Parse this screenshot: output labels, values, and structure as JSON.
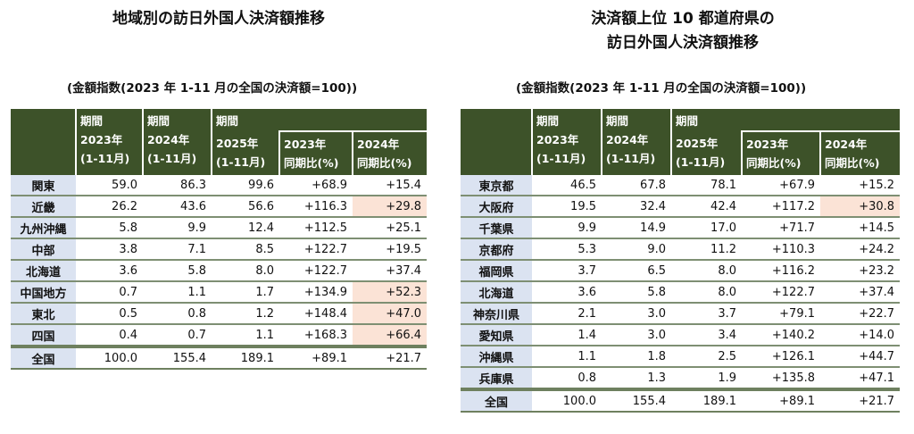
{
  "left": {
    "title": "地域別の訪日外国人決済額推移",
    "subtitle": "(金額指数(2023 年 1-11 月の全国の決済額=100))",
    "headers": {
      "period": "期間",
      "c1": "2023年\n(1-11月)",
      "c2": "2024年\n(1-11月)",
      "c3": "2025年\n(1-11月)",
      "c4": "2023年\n同期比(%)",
      "c5": "2024年\n同期比(%)"
    },
    "rows": [
      [
        "関東",
        "59.0",
        "86.3",
        "99.6",
        "+68.9",
        "+15.4"
      ],
      [
        "近畿",
        "26.2",
        "43.6",
        "56.6",
        "+116.3",
        "+29.8"
      ],
      [
        "九州沖縄",
        "5.8",
        "9.9",
        "12.4",
        "+112.5",
        "+25.1"
      ],
      [
        "中部",
        "3.8",
        "7.1",
        "8.5",
        "+122.7",
        "+19.5"
      ],
      [
        "北海道",
        "3.6",
        "5.8",
        "8.0",
        "+122.7",
        "+37.4"
      ],
      [
        "中国地方",
        "0.7",
        "1.1",
        "1.7",
        "+134.9",
        "+52.3"
      ],
      [
        "東北",
        "0.5",
        "0.8",
        "1.2",
        "+148.4",
        "+47.0"
      ],
      [
        "四国",
        "0.4",
        "0.7",
        "1.1",
        "+168.3",
        "+66.4"
      ]
    ],
    "highlighted_rows": [
      1,
      5,
      6,
      7
    ],
    "total": [
      "全国",
      "100.0",
      "155.4",
      "189.1",
      "+89.1",
      "+21.7"
    ]
  },
  "right": {
    "title": "決済額上位 10 都道府県の\n訪日外国人決済額推移",
    "subtitle": "(金額指数(2023 年 1-11 月の全国の決済額=100))",
    "headers": {
      "period": "期間",
      "c1": "2023年\n(1-11月)",
      "c2": "2024年\n(1-11月)",
      "c3": "2025年\n(1-11月)",
      "c4": "2023年\n同期比(%)",
      "c5": "2024年\n同期比(%)"
    },
    "rows": [
      [
        "東京都",
        "46.5",
        "67.8",
        "78.1",
        "+67.9",
        "+15.2"
      ],
      [
        "大阪府",
        "19.5",
        "32.4",
        "42.4",
        "+117.2",
        "+30.8"
      ],
      [
        "千葉県",
        "9.9",
        "14.9",
        "17.0",
        "+71.7",
        "+14.5"
      ],
      [
        "京都府",
        "5.3",
        "9.0",
        "11.2",
        "+110.3",
        "+24.2"
      ],
      [
        "福岡県",
        "3.7",
        "6.5",
        "8.0",
        "+116.2",
        "+23.2"
      ],
      [
        "北海道",
        "3.6",
        "5.8",
        "8.0",
        "+122.7",
        "+37.4"
      ],
      [
        "神奈川県",
        "2.1",
        "3.0",
        "3.7",
        "+79.1",
        "+22.7"
      ],
      [
        "愛知県",
        "1.4",
        "3.0",
        "3.4",
        "+140.2",
        "+14.0"
      ],
      [
        "沖縄県",
        "1.1",
        "1.8",
        "2.5",
        "+126.1",
        "+44.7"
      ],
      [
        "兵庫県",
        "0.8",
        "1.3",
        "1.9",
        "+135.8",
        "+47.1"
      ]
    ],
    "highlighted_rows": [
      1
    ],
    "total": [
      "全国",
      "100.0",
      "155.4",
      "189.1",
      "+89.1",
      "+21.7"
    ]
  },
  "colors": {
    "header": "#3d5229",
    "label_bg": "#dbe3f1",
    "highlight": "#fbe3d6"
  }
}
